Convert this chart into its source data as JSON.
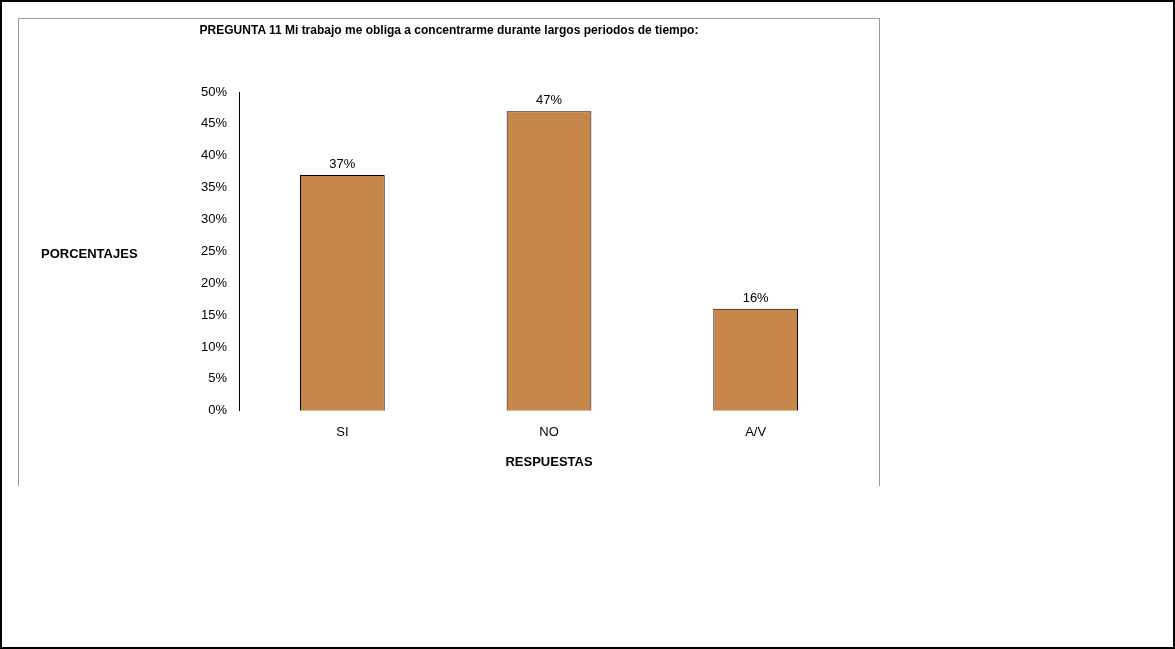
{
  "chart_data": {
    "type": "bar",
    "title": "PREGUNTA 11 Mi trabajo me obliga a concentrarme durante largos periodos de tiempo:",
    "xlabel": "RESPUESTAS",
    "ylabel": "PORCENTAJES",
    "categories": [
      "SI",
      "NO",
      "A/V"
    ],
    "values": [
      37,
      47,
      16
    ],
    "value_labels": [
      "37%",
      "47%",
      "16%"
    ],
    "color": "#c8874a",
    "ylim": [
      0,
      50
    ],
    "yticks": [
      {
        "value": 0,
        "label": "0%"
      },
      {
        "value": 5,
        "label": "5%"
      },
      {
        "value": 10,
        "label": "10%"
      },
      {
        "value": 15,
        "label": "15%"
      },
      {
        "value": 20,
        "label": "20%"
      },
      {
        "value": 25,
        "label": "25%"
      },
      {
        "value": 30,
        "label": "30%"
      },
      {
        "value": 35,
        "label": "35%"
      },
      {
        "value": 40,
        "label": "40%"
      },
      {
        "value": 45,
        "label": "45%"
      },
      {
        "value": 50,
        "label": "50%"
      }
    ],
    "grid": false,
    "legend": false
  }
}
